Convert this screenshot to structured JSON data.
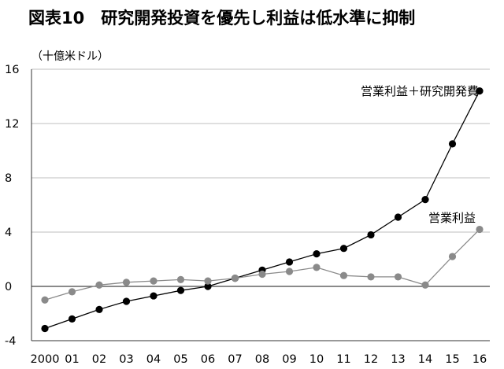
{
  "figure": {
    "title": "図表10　研究開発投資を優先し利益は低水準に抑制",
    "unit": "（十億米ドル）"
  },
  "chart_data": {
    "type": "line",
    "title": "図表10　研究開発投資を優先し利益は低水準に抑制",
    "ylabel": "（十億米ドル）",
    "xlabel": "",
    "categories": [
      "2000",
      "01",
      "02",
      "03",
      "04",
      "05",
      "06",
      "07",
      "08",
      "09",
      "10",
      "11",
      "12",
      "13",
      "14",
      "15",
      "16"
    ],
    "ylim": [
      -4,
      16
    ],
    "yticks": [
      -4,
      0,
      4,
      8,
      12,
      16
    ],
    "grid": "horizontal",
    "series": [
      {
        "name": "営業利益＋研究開発費",
        "color": "#000000",
        "values": [
          -3.1,
          -2.4,
          -1.7,
          -1.1,
          -0.7,
          -0.3,
          0.0,
          0.6,
          1.2,
          1.8,
          2.4,
          2.8,
          3.8,
          5.1,
          6.4,
          10.5,
          14.4
        ]
      },
      {
        "name": "営業利益",
        "color": "#8a8a8a",
        "values": [
          -1.0,
          -0.4,
          0.1,
          0.3,
          0.4,
          0.5,
          0.4,
          0.6,
          0.9,
          1.1,
          1.4,
          0.8,
          0.7,
          0.7,
          0.1,
          2.2,
          4.2
        ]
      }
    ]
  }
}
